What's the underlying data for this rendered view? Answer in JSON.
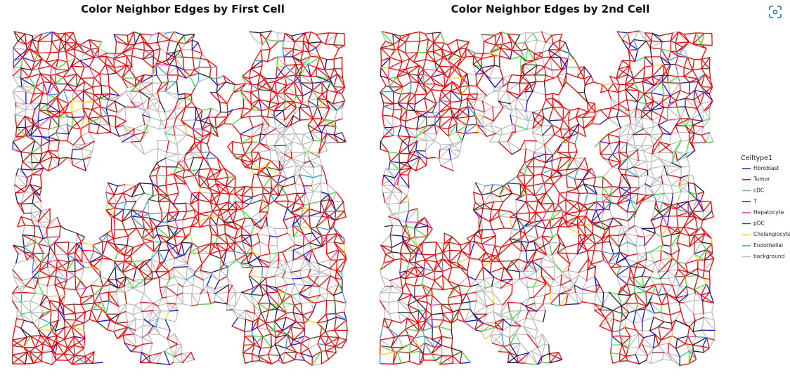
{
  "chart_data": [
    {
      "type": "network",
      "title": "Color Neighbor Edges by First Cell"
    },
    {
      "type": "network",
      "title": "Color Neighbor Edges by 2nd Cell"
    }
  ],
  "legend": {
    "title": "Celltype1",
    "items": [
      {
        "name": "Fibroblast",
        "color": "#1010e0"
      },
      {
        "name": "Tumor",
        "color": "#ff0000"
      },
      {
        "name": "cDC",
        "color": "#33e633"
      },
      {
        "name": "T",
        "color": "#1a1f3a"
      },
      {
        "name": "Hepatocyte",
        "color": "#ff33cc"
      },
      {
        "name": "pDC",
        "color": "#1f5a2a"
      },
      {
        "name": "Cholangiocyte",
        "color": "#ffd21a"
      },
      {
        "name": "Endothelial",
        "color": "#2b9cf0"
      },
      {
        "name": "background",
        "color": "#bdbdbd"
      }
    ]
  }
}
